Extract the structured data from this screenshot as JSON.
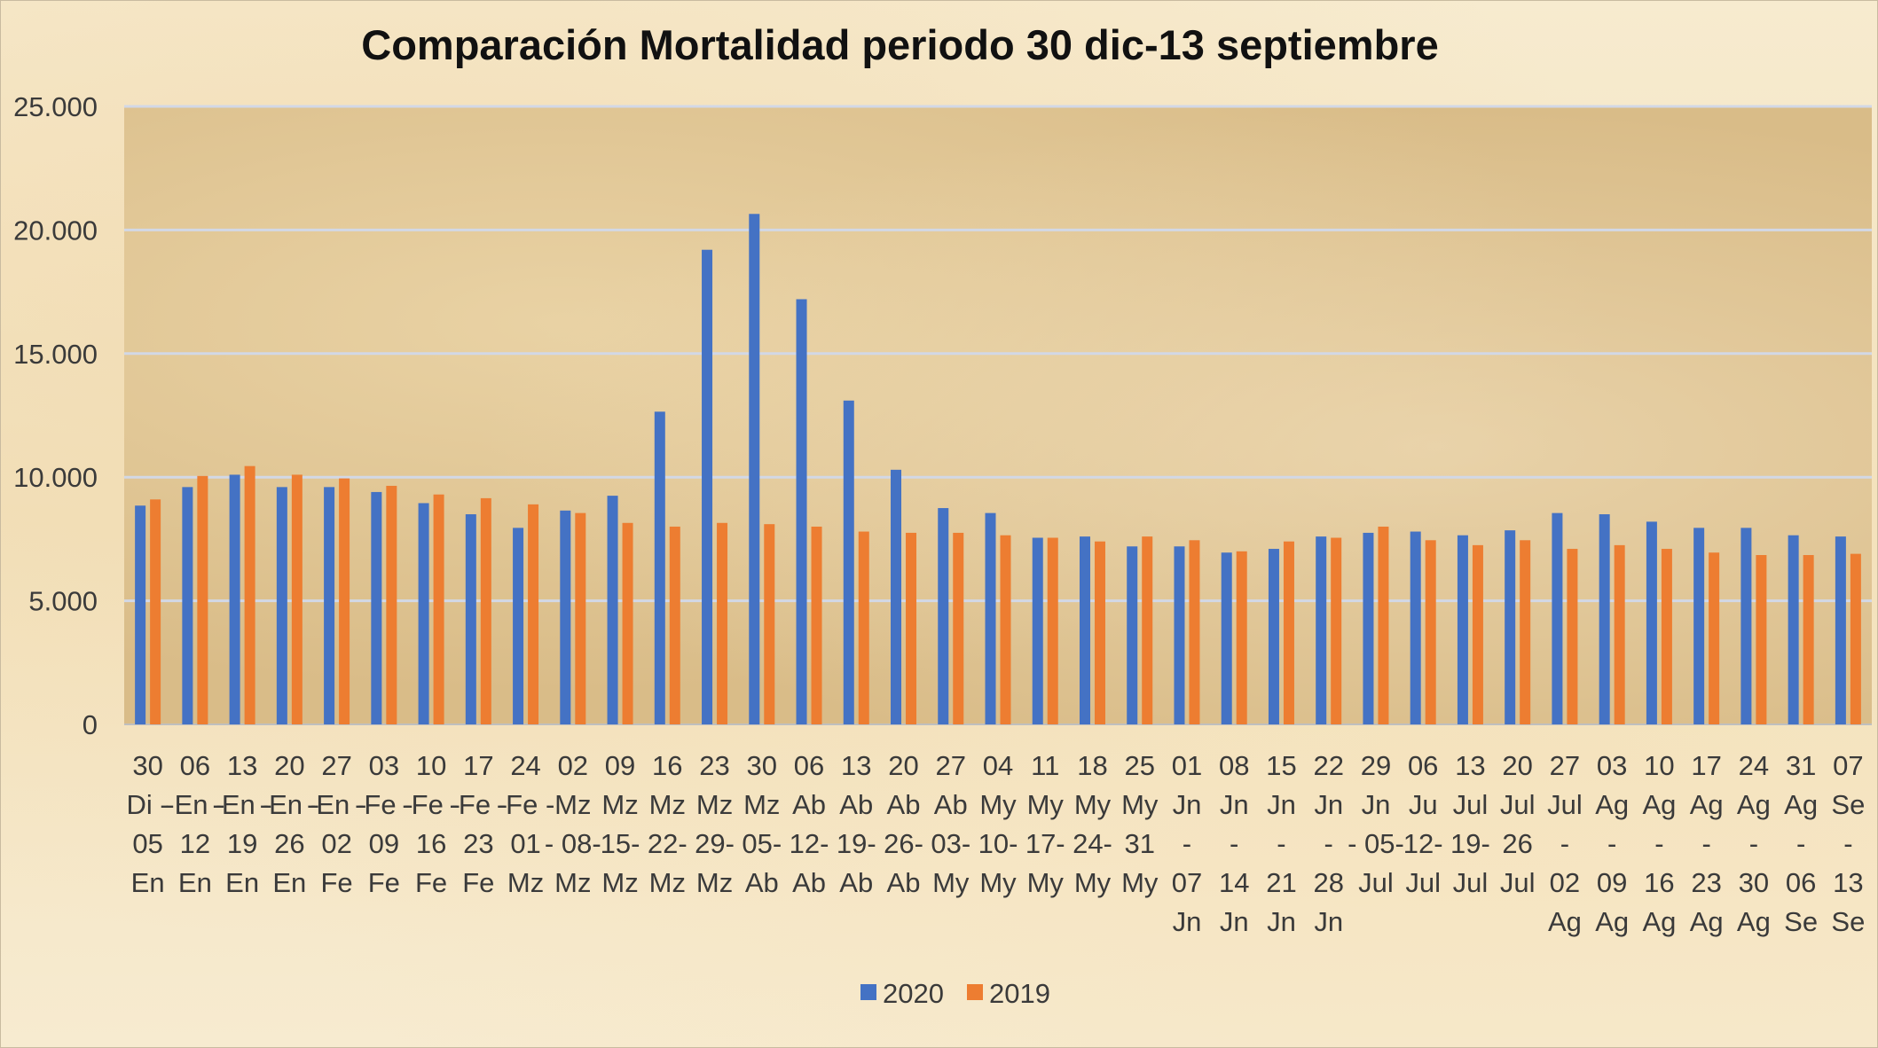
{
  "chart_data": {
    "type": "bar",
    "title": "Comparación Mortalidad periodo 30 dic-13 septiembre",
    "xlabel": "",
    "ylabel": "",
    "ylim": [
      0,
      25000
    ],
    "yticks": [
      0,
      5000,
      10000,
      15000,
      20000,
      25000
    ],
    "ytick_labels": [
      "0",
      "5.000",
      "10.000",
      "15.000",
      "20.000",
      "25.000"
    ],
    "grid": true,
    "legend_position": "bottom",
    "categories": [
      [
        "30",
        "Di -",
        "05",
        "En"
      ],
      [
        "06",
        "-En -",
        "12",
        "En"
      ],
      [
        "13",
        "-En -",
        "19",
        "En"
      ],
      [
        "20",
        "-En -",
        "26",
        "En"
      ],
      [
        "27",
        "-En -",
        "02",
        "Fe"
      ],
      [
        "03",
        "-Fe -",
        "09",
        "Fe"
      ],
      [
        "10",
        "-Fe -",
        "16",
        "Fe"
      ],
      [
        "17",
        "-Fe -",
        "23",
        "Fe"
      ],
      [
        "24",
        "-Fe -",
        "01",
        "Mz"
      ],
      [
        "02",
        "Mz",
        "- 08-",
        "Mz"
      ],
      [
        "09",
        "Mz",
        "15-",
        "Mz"
      ],
      [
        "16",
        "Mz",
        "22-",
        "Mz"
      ],
      [
        "23",
        "Mz",
        "29-",
        "Mz"
      ],
      [
        "30",
        "Mz",
        "05-",
        "Ab"
      ],
      [
        "06",
        "Ab",
        "12-",
        "Ab"
      ],
      [
        "13",
        "Ab",
        "19-",
        "Ab"
      ],
      [
        "20",
        "Ab",
        "26-",
        "Ab"
      ],
      [
        "27",
        "Ab",
        "03-",
        "My"
      ],
      [
        "04",
        "My",
        "10-",
        "My"
      ],
      [
        "11",
        "My",
        "17-",
        "My"
      ],
      [
        "18",
        "My",
        "24-",
        "My"
      ],
      [
        "25",
        "My",
        "31",
        "My"
      ],
      [
        "01",
        "Jn",
        "-",
        "07",
        "Jn"
      ],
      [
        "08",
        "Jn",
        "-",
        "14",
        "Jn"
      ],
      [
        "15",
        "Jn",
        "-",
        "21",
        "Jn"
      ],
      [
        "22",
        "Jn",
        "-",
        "28",
        "Jn"
      ],
      [
        "29",
        "Jn",
        "- 05-",
        "Jul"
      ],
      [
        "06",
        "Ju",
        "12-",
        "Jul"
      ],
      [
        "13",
        "Jul",
        "19-",
        "Jul"
      ],
      [
        "20",
        "Jul",
        "26",
        "Jul"
      ],
      [
        "27",
        "Jul",
        "-",
        "02",
        "Ag"
      ],
      [
        "03",
        "Ag",
        "-",
        "09",
        "Ag"
      ],
      [
        "10",
        "Ag",
        "-",
        "16",
        "Ag"
      ],
      [
        "17",
        "Ag",
        "-",
        "23",
        "Ag"
      ],
      [
        "24",
        "Ag",
        "-",
        "30",
        "Ag"
      ],
      [
        "31",
        "Ag",
        "-",
        "06",
        "Se"
      ],
      [
        "07",
        "Se",
        "-",
        "13",
        "Se"
      ]
    ],
    "series": [
      {
        "name": "2020",
        "color": "#4472c4",
        "values": [
          8850,
          9600,
          10100,
          9600,
          9600,
          9400,
          8950,
          8500,
          7950,
          8650,
          9250,
          12650,
          19200,
          20650,
          17200,
          13100,
          10300,
          8750,
          8550,
          7550,
          7600,
          7200,
          7200,
          6950,
          7100,
          7600,
          7750,
          7800,
          7650,
          7850,
          8550,
          8500,
          8200,
          7950,
          7950,
          7650,
          7600
        ]
      },
      {
        "name": "2019",
        "color": "#ed7d31",
        "values": [
          9100,
          10050,
          10450,
          10100,
          9950,
          9650,
          9300,
          9150,
          8900,
          8550,
          8150,
          8000,
          8150,
          8100,
          8000,
          7800,
          7750,
          7750,
          7650,
          7550,
          7400,
          7600,
          7450,
          7000,
          7400,
          7550,
          8000,
          7450,
          7250,
          7450,
          7100,
          7250,
          7100,
          6950,
          6850,
          6850,
          6900
        ]
      }
    ]
  }
}
